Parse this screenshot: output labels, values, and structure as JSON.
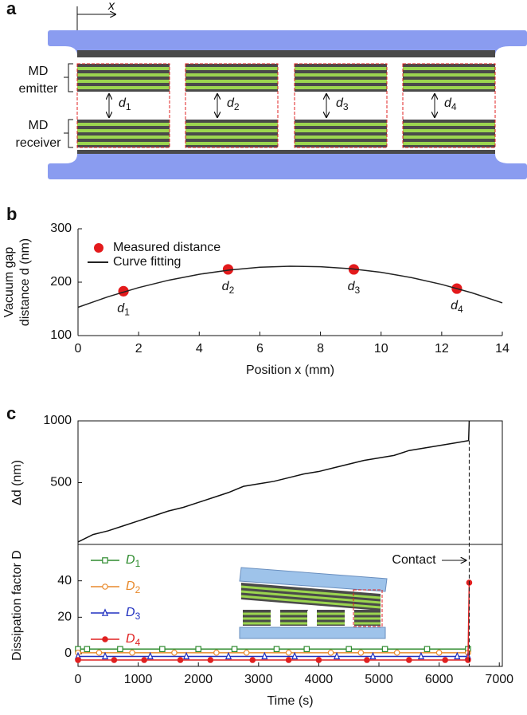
{
  "figure": {
    "panel_labels": [
      "a",
      "b",
      "c"
    ],
    "diagram": {
      "axis_label": "x",
      "emitter": [
        "MD",
        "emitter"
      ],
      "receiver": [
        "MD",
        "receiver"
      ],
      "gaps": [
        {
          "base": "d",
          "sub": "1"
        },
        {
          "base": "d",
          "sub": "2"
        },
        {
          "base": "d",
          "sub": "3"
        },
        {
          "base": "d",
          "sub": "4"
        }
      ]
    }
  },
  "chart_data": [
    {
      "type": "line",
      "xlabel": "Position x (mm)",
      "ylabel": [
        "Vacuum gap",
        "distance d (nm)"
      ],
      "xlim": [
        0,
        14
      ],
      "ylim": [
        100,
        300
      ],
      "xticks": [
        0,
        2,
        4,
        6,
        8,
        10,
        12,
        14
      ],
      "yticks": [
        100,
        200,
        300
      ],
      "series": [
        {
          "name": "Measured distance",
          "color": "#e31a1c",
          "marker": "circle",
          "filled": true,
          "line": false,
          "x": [
            1.5,
            4.95,
            9.1,
            12.5
          ],
          "values": [
            183,
            224,
            224,
            188
          ],
          "point_labels": [
            {
              "base": "d",
              "sub": "1"
            },
            {
              "base": "d",
              "sub": "2"
            },
            {
              "base": "d",
              "sub": "3"
            },
            {
              "base": "d",
              "sub": "4"
            }
          ]
        },
        {
          "name": "Curve fitting",
          "color": "#222222",
          "marker": "none",
          "line": true,
          "x": [
            0,
            1,
            2,
            3,
            4,
            5,
            6,
            7,
            8,
            9,
            10,
            11,
            12,
            13,
            14
          ],
          "values": [
            153.0,
            172.9,
            189.8,
            203.8,
            214.8,
            222.8,
            227.9,
            229.9,
            229.0,
            225.2,
            218.4,
            208.6,
            195.8,
            180.0,
            161.3
          ]
        }
      ]
    },
    {
      "type": "line",
      "ylabel": [
        "Δd (nm)"
      ],
      "xlim": [
        0,
        7050
      ],
      "ylim": [
        0,
        1000
      ],
      "yticks": [
        500,
        1000
      ],
      "series": [
        {
          "color": "#111111",
          "marker": "none",
          "line": true,
          "x": [
            0,
            250,
            500,
            750,
            1000,
            1250,
            1500,
            1750,
            2000,
            2250,
            2500,
            2750,
            3000,
            3250,
            3500,
            3750,
            4000,
            4250,
            4500,
            4750,
            5000,
            5250,
            5500,
            5750,
            6000,
            6250,
            6490,
            6500
          ],
          "values": [
            20,
            80,
            110,
            150,
            190,
            230,
            270,
            300,
            340,
            380,
            420,
            470,
            490,
            510,
            540,
            570,
            590,
            620,
            650,
            680,
            700,
            720,
            760,
            780,
            800,
            820,
            840,
            1000
          ]
        }
      ]
    },
    {
      "type": "line",
      "xlabel": "Time (s)",
      "ylabel": [
        "Dissipation factor D"
      ],
      "annotation": "Contact",
      "xlim": [
        0,
        7050
      ],
      "ylim": [
        -7,
        60
      ],
      "xticks": [
        0,
        1000,
        2000,
        3000,
        4000,
        5000,
        6000,
        7000
      ],
      "yticks": [
        0,
        20,
        40
      ],
      "series": [
        {
          "name": {
            "base": "D",
            "sub": "1"
          },
          "color": "#2e8b2e",
          "marker": "square",
          "filled": false,
          "line": true,
          "x": [
            0,
            150,
            700,
            1400,
            2000,
            2600,
            3300,
            3800,
            4500,
            5100,
            5800,
            6480
          ],
          "values": [
            2.5,
            2.5,
            2.5,
            2.5,
            2.5,
            2.5,
            2.5,
            2.5,
            2.5,
            2.5,
            2.5,
            2.5
          ]
        },
        {
          "name": {
            "base": "D",
            "sub": "2"
          },
          "color": "#e8892b",
          "marker": "circle",
          "filled": false,
          "line": true,
          "x": [
            0,
            350,
            900,
            1600,
            2300,
            2800,
            3500,
            4200,
            4700,
            5300,
            6000,
            6480
          ],
          "values": [
            0.5,
            0.5,
            0.5,
            0.5,
            0.5,
            0.5,
            0.5,
            0.5,
            0.5,
            0.5,
            0.5,
            0.5
          ]
        },
        {
          "name": {
            "base": "D",
            "sub": "3"
          },
          "color": "#2030c0",
          "marker": "triangle",
          "filled": false,
          "line": true,
          "x": [
            0,
            450,
            1200,
            1800,
            2500,
            3100,
            3600,
            4300,
            4900,
            5700,
            6300,
            6480
          ],
          "values": [
            -1.5,
            -1.5,
            -1.5,
            -1.5,
            -1.5,
            -1.5,
            -1.5,
            -1.5,
            -1.5,
            -1.5,
            -1.5,
            -1.5
          ]
        },
        {
          "name": {
            "base": "D",
            "sub": "4"
          },
          "color": "#e02020",
          "marker": "circle",
          "filled": true,
          "line": true,
          "x": [
            0,
            600,
            1100,
            1700,
            2200,
            2900,
            3500,
            4000,
            4800,
            5500,
            6100,
            6480,
            6500
          ],
          "values": [
            -3.5,
            -3.5,
            -3.5,
            -3.5,
            -3.5,
            -3.5,
            -3.5,
            -3.5,
            -3.5,
            -3.5,
            -3.5,
            -3.5,
            39
          ]
        }
      ]
    }
  ]
}
